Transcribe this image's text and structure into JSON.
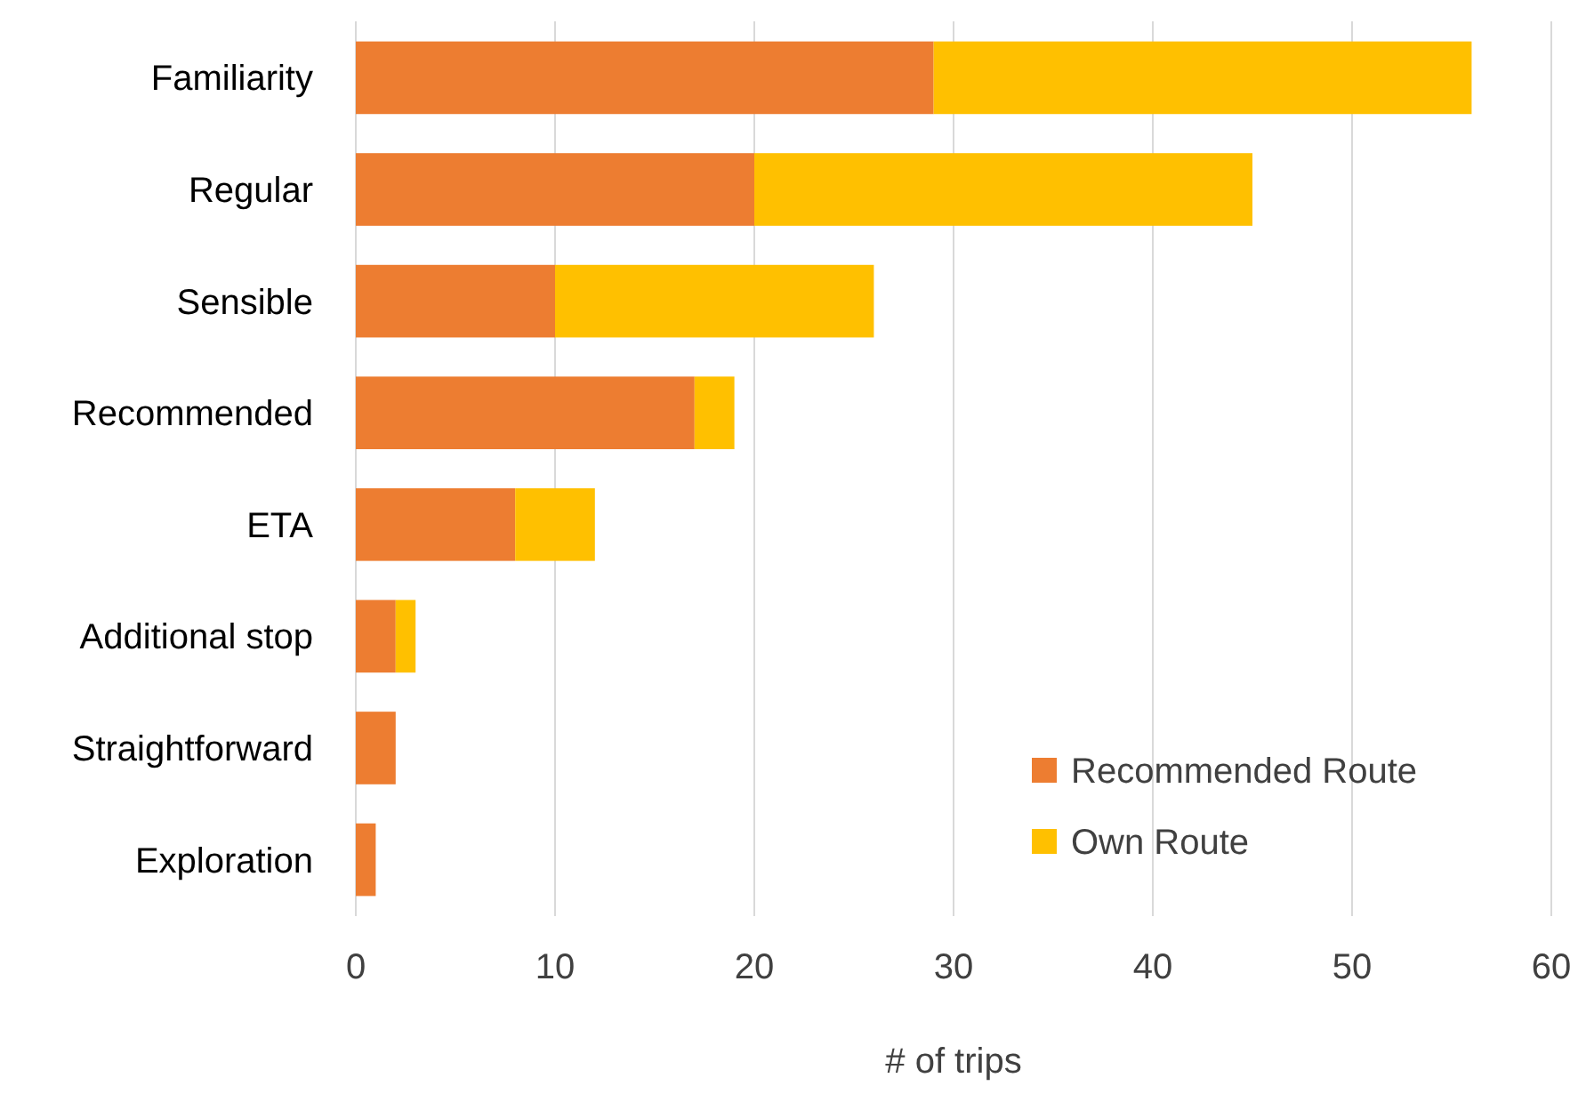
{
  "chart_data": {
    "type": "bar",
    "orientation": "horizontal",
    "stacked": true,
    "xlabel": "# of trips",
    "categories": [
      "Familiarity",
      "Regular",
      "Sensible",
      "Recommended",
      "ETA",
      "Additional stop",
      "Straightforward",
      "Exploration"
    ],
    "series": [
      {
        "name": "Recommended Route",
        "color": "#ed7d31",
        "values": [
          29,
          20,
          10,
          17,
          8,
          2,
          2,
          1
        ]
      },
      {
        "name": "Own Route",
        "color": "#ffc000",
        "values": [
          27,
          25,
          16,
          2,
          4,
          1,
          0,
          0
        ]
      }
    ],
    "xlim": [
      0,
      60
    ],
    "xticks": [
      0,
      10,
      20,
      30,
      40,
      50,
      60
    ],
    "grid": "x",
    "legend": "bottom right"
  }
}
